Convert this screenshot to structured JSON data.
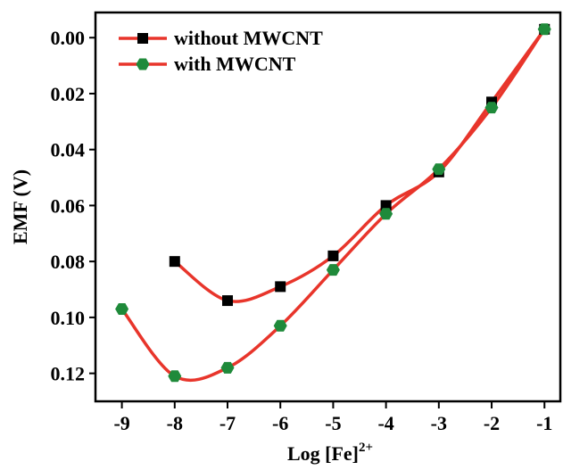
{
  "chart_data": {
    "type": "line",
    "xlabel": "Log [Fe]",
    "xlabel_sup": "2+",
    "ylabel": "EMF (V)",
    "x": [
      -9,
      -8,
      -7,
      -6,
      -5,
      -4,
      -3,
      -2,
      -1
    ],
    "series": [
      {
        "name": "without MWCNT",
        "color": "#e8352b",
        "marker": "square",
        "marker_color": "#000000",
        "values": [
          null,
          0.08,
          0.094,
          0.089,
          0.078,
          0.06,
          0.048,
          0.023,
          -0.003
        ]
      },
      {
        "name": "with MWCNT",
        "color": "#e8352b",
        "marker": "hexagon",
        "marker_color": "#1f8a3a",
        "values": [
          0.097,
          0.121,
          0.118,
          0.103,
          0.083,
          0.063,
          0.047,
          0.025,
          -0.003
        ]
      }
    ],
    "xlim": [
      -9.5,
      -0.7
    ],
    "xticks": [
      -9,
      -8,
      -7,
      -6,
      -5,
      -4,
      -3,
      -2,
      -1
    ],
    "ylim": [
      -0.009,
      0.13
    ],
    "y_reversed": true,
    "yticks": [
      {
        "value": 0.0,
        "label": "0.00"
      },
      {
        "value": 0.02,
        "label": "0.02"
      },
      {
        "value": 0.04,
        "label": "0.04"
      },
      {
        "value": 0.06,
        "label": "0.06"
      },
      {
        "value": 0.08,
        "label": "0.08"
      },
      {
        "value": 0.1,
        "label": "0.10"
      },
      {
        "value": 0.12,
        "label": "0.12"
      }
    ],
    "legend": "upper-left",
    "grid": false
  }
}
